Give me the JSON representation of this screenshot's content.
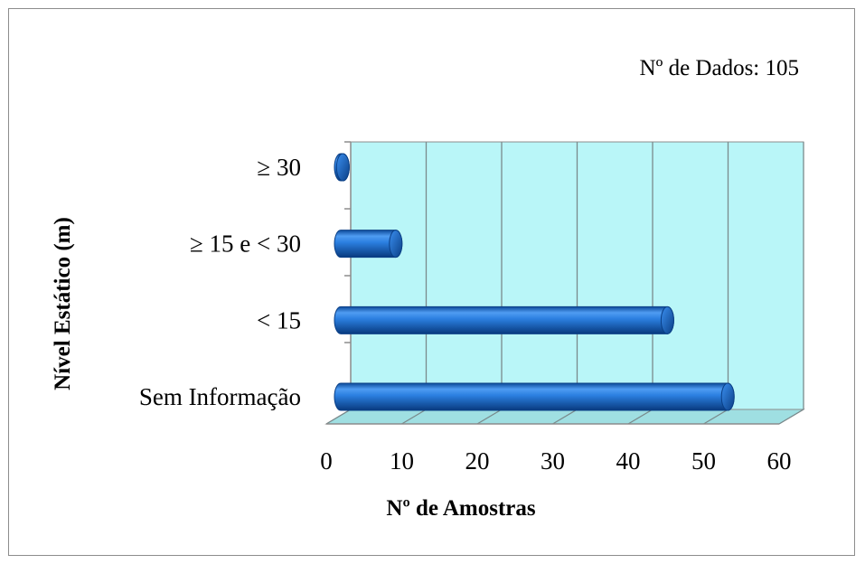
{
  "chart_data": {
    "type": "bar",
    "orientation": "horizontal",
    "style": "3d-cylinder",
    "annotation": "Nº de Dados: 105",
    "xlabel": "Nº de Amostras",
    "ylabel": "Nível Estático (m)",
    "categories": [
      "Sem Informação",
      "< 15",
      "≥ 15 e < 30",
      "≥ 30"
    ],
    "values": [
      52,
      44,
      8,
      1
    ],
    "xlim": [
      0,
      60
    ],
    "xticks": [
      "0",
      "10",
      "20",
      "30",
      "40",
      "50",
      "60"
    ],
    "grid": true,
    "legend": "none",
    "colors": {
      "bar": "#1f6fd1",
      "bar_dark": "#0a3f86",
      "bar_light": "#6fb3ff",
      "wall": "#b9f6f8",
      "floor": "#9fdfe2",
      "grid": "#7a8a8c",
      "axis": "#8c8c8c"
    }
  }
}
